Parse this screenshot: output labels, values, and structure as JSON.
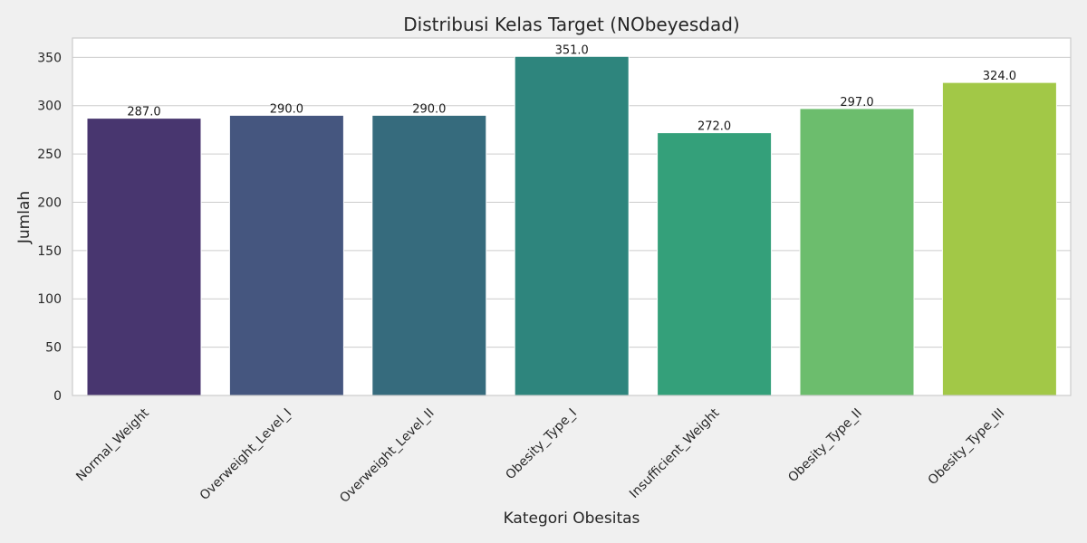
{
  "chart_data": {
    "type": "bar",
    "title": "Distribusi Kelas Target (NObeyesdad)",
    "xlabel": "Kategori Obesitas",
    "ylabel": "Jumlah",
    "categories": [
      "Normal_Weight",
      "Overweight_Level_I",
      "Overweight_Level_II",
      "Obesity_Type_I",
      "Insufficient_Weight",
      "Obesity_Type_II",
      "Obesity_Type_III"
    ],
    "values": [
      287,
      290,
      290,
      351,
      272,
      297,
      324
    ],
    "value_labels": [
      "287.0",
      "290.0",
      "290.0",
      "351.0",
      "272.0",
      "297.0",
      "324.0"
    ],
    "colors": [
      "#48366f",
      "#45567f",
      "#366b7d",
      "#2e857d",
      "#34a07a",
      "#6cbd6d",
      "#a2c847"
    ],
    "ylim": [
      0,
      370
    ],
    "yticks": [
      0,
      50,
      100,
      150,
      200,
      250,
      300,
      350
    ],
    "grid": true,
    "grid_axis": "y",
    "legend": "none",
    "background": "#f0f0f0",
    "plot_background": "#ffffff",
    "grid_color": "#cccccc"
  }
}
